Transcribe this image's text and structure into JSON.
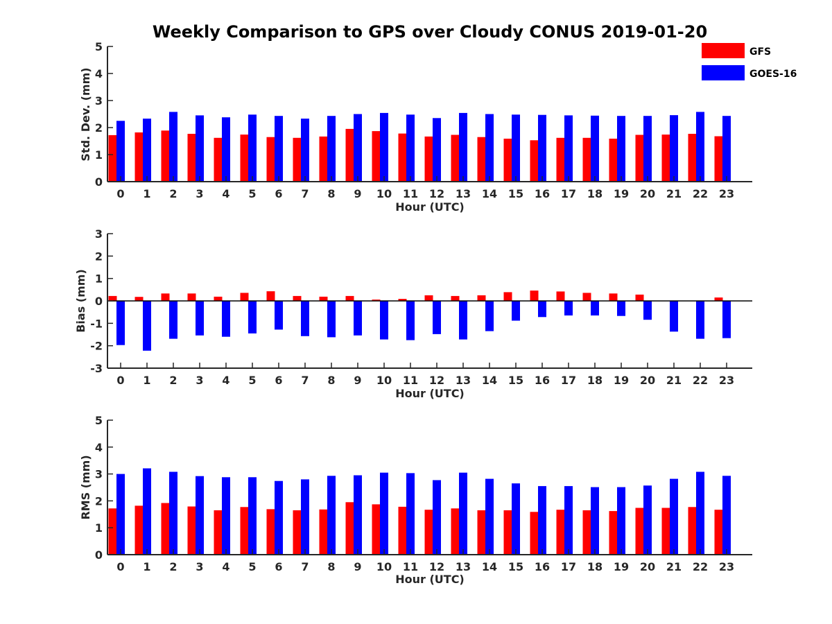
{
  "title": "Weekly Comparison to GPS over Cloudy CONUS 2019-01-20",
  "colors": {
    "gfs": "#ff0000",
    "goes": "#0000ff",
    "axis": "#262626"
  },
  "legend": {
    "placement": "top-right",
    "entries": [
      "GFS",
      "GOES-16"
    ]
  },
  "chart_data": [
    {
      "type": "bar",
      "xlabel": "Hour (UTC)",
      "ylabel": "Std. Dev. (mm)",
      "ylim": [
        0,
        5
      ],
      "yticks": [
        0,
        1,
        2,
        3,
        4,
        5
      ],
      "grid": false,
      "categories": [
        "0",
        "1",
        "2",
        "3",
        "4",
        "5",
        "6",
        "7",
        "8",
        "9",
        "10",
        "11",
        "12",
        "13",
        "14",
        "15",
        "16",
        "17",
        "18",
        "19",
        "20",
        "21",
        "22",
        "23"
      ],
      "series": [
        {
          "name": "GFS",
          "values": [
            1.72,
            1.82,
            1.89,
            1.77,
            1.62,
            1.74,
            1.65,
            1.62,
            1.67,
            1.95,
            1.87,
            1.78,
            1.67,
            1.73,
            1.65,
            1.59,
            1.53,
            1.62,
            1.62,
            1.59,
            1.73,
            1.74,
            1.77,
            1.68
          ]
        },
        {
          "name": "GOES-16",
          "values": [
            2.25,
            2.33,
            2.58,
            2.45,
            2.38,
            2.48,
            2.43,
            2.33,
            2.43,
            2.5,
            2.54,
            2.48,
            2.35,
            2.54,
            2.5,
            2.48,
            2.47,
            2.45,
            2.44,
            2.43,
            2.43,
            2.46,
            2.58,
            2.43
          ]
        }
      ]
    },
    {
      "type": "bar",
      "xlabel": "Hour (UTC)",
      "ylabel": "Bias (mm)",
      "ylim": [
        -3,
        3
      ],
      "yticks": [
        -3,
        -2,
        -1,
        0,
        1,
        2,
        3
      ],
      "grid": false,
      "categories": [
        "0",
        "1",
        "2",
        "3",
        "4",
        "5",
        "6",
        "7",
        "8",
        "9",
        "10",
        "11",
        "12",
        "13",
        "14",
        "15",
        "16",
        "17",
        "18",
        "19",
        "20",
        "21",
        "22",
        "23"
      ],
      "series": [
        {
          "name": "GFS",
          "values": [
            0.22,
            0.18,
            0.33,
            0.33,
            0.19,
            0.36,
            0.43,
            0.22,
            0.19,
            0.22,
            0.06,
            0.09,
            0.25,
            0.22,
            0.25,
            0.39,
            0.46,
            0.42,
            0.36,
            0.33,
            0.28,
            0.0,
            0.0,
            0.15
          ]
        },
        {
          "name": "GOES-16",
          "values": [
            -1.97,
            -2.22,
            -1.69,
            -1.54,
            -1.6,
            -1.45,
            -1.28,
            -1.57,
            -1.62,
            -1.54,
            -1.72,
            -1.75,
            -1.48,
            -1.72,
            -1.35,
            -0.88,
            -0.72,
            -0.65,
            -0.65,
            -0.67,
            -0.84,
            -1.37,
            -1.69,
            -1.66
          ]
        }
      ]
    },
    {
      "type": "bar",
      "xlabel": "Hour (UTC)",
      "ylabel": "RMS (mm)",
      "ylim": [
        0,
        5
      ],
      "yticks": [
        0,
        1,
        2,
        3,
        4,
        5
      ],
      "grid": false,
      "categories": [
        "0",
        "1",
        "2",
        "3",
        "4",
        "5",
        "6",
        "7",
        "8",
        "9",
        "10",
        "11",
        "12",
        "13",
        "14",
        "15",
        "16",
        "17",
        "18",
        "19",
        "20",
        "21",
        "22",
        "23"
      ],
      "series": [
        {
          "name": "GFS",
          "values": [
            1.72,
            1.82,
            1.92,
            1.79,
            1.65,
            1.77,
            1.69,
            1.65,
            1.68,
            1.95,
            1.87,
            1.78,
            1.67,
            1.72,
            1.65,
            1.65,
            1.59,
            1.67,
            1.65,
            1.62,
            1.74,
            1.74,
            1.77,
            1.67
          ]
        },
        {
          "name": "GOES-16",
          "values": [
            3.0,
            3.21,
            3.08,
            2.92,
            2.88,
            2.88,
            2.74,
            2.8,
            2.93,
            2.95,
            3.05,
            3.03,
            2.77,
            3.05,
            2.82,
            2.65,
            2.55,
            2.55,
            2.51,
            2.51,
            2.57,
            2.82,
            3.08,
            2.93
          ]
        }
      ]
    }
  ]
}
